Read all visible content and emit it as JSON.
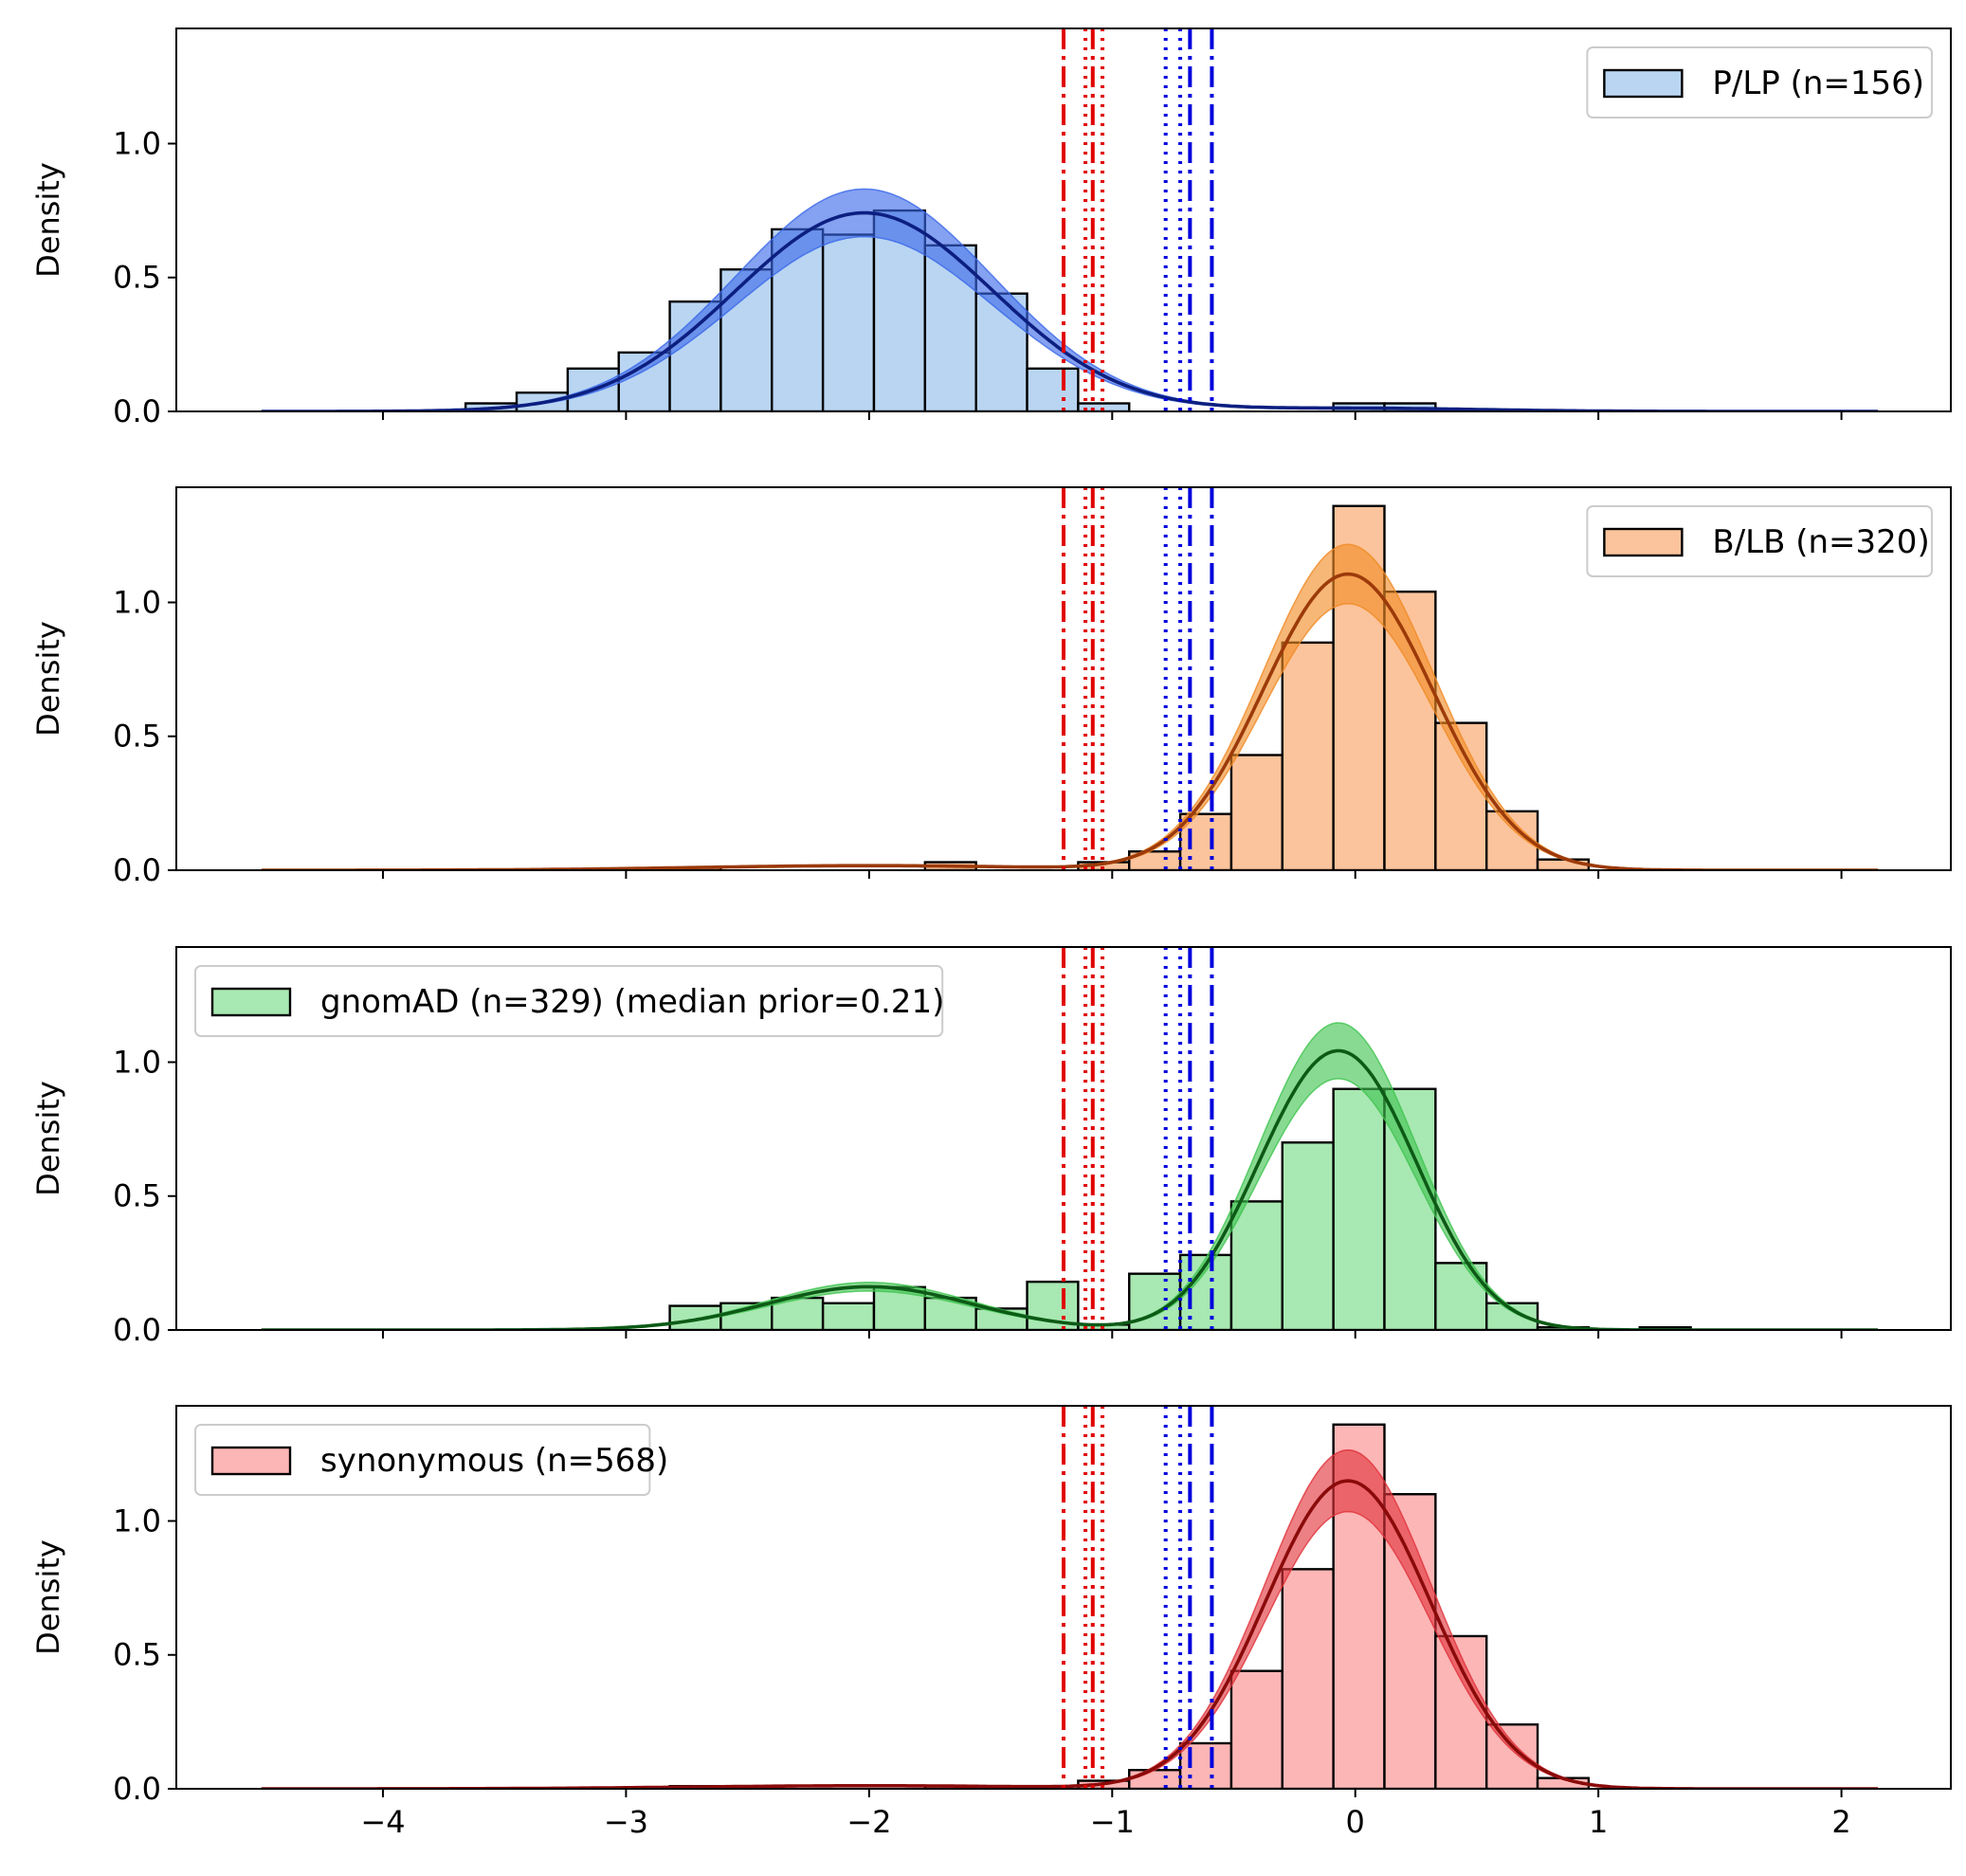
{
  "chart_data": {
    "type": "histogram",
    "shared_x": true,
    "xlim": [
      -4.85,
      2.45
    ],
    "x_ticks": [
      -4,
      -3,
      -2,
      -1,
      0,
      1,
      2
    ],
    "x_tick_labels": [
      "−4",
      "−3",
      "−2",
      "−1",
      "0",
      "1",
      "2"
    ],
    "ylim": [
      0,
      1.43
    ],
    "y_ticks": [
      0.0,
      0.5,
      1.0
    ],
    "y_tick_labels": [
      "0.0",
      "0.5",
      "1.0"
    ],
    "ylabel": "Density",
    "bin_edges": [
      -4.5,
      -4.29,
      -4.08,
      -3.87,
      -3.66,
      -3.45,
      -3.24,
      -3.03,
      -2.82,
      -2.61,
      -2.4,
      -2.19,
      -1.98,
      -1.77,
      -1.56,
      -1.35,
      -1.14,
      -0.93,
      -0.72,
      -0.51,
      -0.3,
      -0.09,
      0.12,
      0.33,
      0.54,
      0.75,
      0.96,
      1.17,
      1.38,
      1.59,
      1.8,
      2.01
    ],
    "thresholds": [
      {
        "x": -1.2,
        "color": "#e00000",
        "style": "dashdot"
      },
      {
        "x": -1.11,
        "color": "#e00000",
        "style": "dotted"
      },
      {
        "x": -1.08,
        "color": "#e00000",
        "style": "dashdot"
      },
      {
        "x": -1.04,
        "color": "#e00000",
        "style": "dotted"
      },
      {
        "x": -0.78,
        "color": "#0000dd",
        "style": "dotted"
      },
      {
        "x": -0.72,
        "color": "#0000dd",
        "style": "dotted"
      },
      {
        "x": -0.68,
        "color": "#0000dd",
        "style": "dashdot"
      },
      {
        "x": -0.59,
        "color": "#0000dd",
        "style": "dashdot"
      }
    ],
    "panels": [
      {
        "legend_label": "P/LP (n=156)",
        "legend_position": "upper right",
        "hist_color": "#b9d5f2",
        "band_color": "#3a68e8",
        "line_color": "#0c1f80",
        "hist_values": [
          0,
          0,
          0,
          0,
          0.03,
          0.07,
          0.16,
          0.22,
          0.41,
          0.53,
          0.68,
          0.66,
          0.75,
          0.62,
          0.44,
          0.16,
          0.03,
          0,
          0,
          0,
          0,
          0.03,
          0.03,
          0,
          0,
          0,
          0,
          0,
          0,
          0,
          0
        ],
        "kde": [
          {
            "mu": -2.02,
            "sigma": 0.53,
            "w": 0.985
          },
          {
            "mu": 0.0,
            "sigma": 0.5,
            "w": 0.015
          }
        ],
        "band_width": 0.12
      },
      {
        "legend_label": "B/LB (n=320)",
        "legend_position": "upper right",
        "hist_color": "#fcc49c",
        "band_color": "#f08a24",
        "line_color": "#9c3a0a",
        "hist_values": [
          0,
          0,
          0,
          0,
          0,
          0,
          0,
          0,
          0.01,
          0,
          0,
          0,
          0,
          0.03,
          0,
          0,
          0.03,
          0.07,
          0.21,
          0.43,
          0.85,
          1.36,
          1.04,
          0.55,
          0.22,
          0.04,
          0,
          0,
          0,
          0,
          0
        ],
        "kde": [
          {
            "mu": -0.03,
            "sigma": 0.35,
            "w": 0.97
          },
          {
            "mu": -2.0,
            "sigma": 0.7,
            "w": 0.03
          }
        ],
        "band_width": 0.1
      },
      {
        "legend_label": "gnomAD (n=329) (median prior=0.21)",
        "legend_position": "upper left",
        "hist_color": "#a8e8b2",
        "band_color": "#3fc44f",
        "line_color": "#0d5a16",
        "hist_values": [
          0,
          0,
          0,
          0,
          0,
          0,
          0,
          0,
          0.09,
          0.1,
          0.12,
          0.1,
          0.16,
          0.12,
          0.08,
          0.18,
          0.02,
          0.21,
          0.28,
          0.48,
          0.7,
          0.9,
          0.9,
          0.25,
          0.1,
          0.01,
          0,
          0.01,
          0,
          0,
          0
        ],
        "kde": [
          {
            "mu": -0.03,
            "sigma": 0.3,
            "w": 0.72
          },
          {
            "mu": -2.0,
            "sigma": 0.42,
            "w": 0.17
          },
          {
            "mu": -0.35,
            "sigma": 0.25,
            "w": 0.11
          }
        ],
        "band_width": 0.1
      },
      {
        "legend_label": "synonymous (n=568)",
        "legend_position": "upper left",
        "hist_color": "#fcb6b6",
        "band_color": "#e0323a",
        "line_color": "#8a0a0a",
        "hist_values": [
          0,
          0,
          0,
          0,
          0,
          0,
          0,
          0,
          0.01,
          0,
          0,
          0,
          0,
          0.01,
          0,
          0,
          0.03,
          0.07,
          0.17,
          0.44,
          0.82,
          1.36,
          1.1,
          0.57,
          0.24,
          0.04,
          0,
          0,
          0,
          0,
          0
        ],
        "kde": [
          {
            "mu": -0.03,
            "sigma": 0.34,
            "w": 0.98
          },
          {
            "mu": -2.0,
            "sigma": 0.7,
            "w": 0.02
          }
        ],
        "band_width": 0.1
      }
    ]
  }
}
